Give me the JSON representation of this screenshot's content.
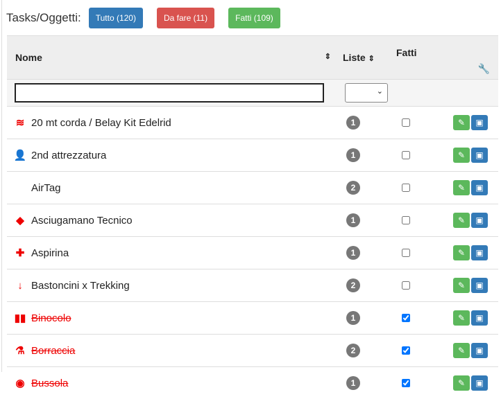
{
  "header": {
    "title": "Tasks/Oggetti:",
    "buttons": [
      {
        "label": "Tutto (120)",
        "color": "#337ab7"
      },
      {
        "label": "Da fare (11)",
        "color": "#d9534f"
      },
      {
        "label": "Fatti (109)",
        "color": "#5cb85c"
      }
    ]
  },
  "table": {
    "columns": {
      "nome": "Nome",
      "liste": "Liste",
      "fatti": "Fatti"
    },
    "filters": {
      "nome": "",
      "liste": ""
    },
    "rows": [
      {
        "icon": "squarespace-icon",
        "glyph": "≋",
        "name": "20 mt corda / Belay Kit Edelrid",
        "liste": "1",
        "done": false
      },
      {
        "icon": "user-check-icon",
        "glyph": "👤",
        "name": "2nd attrezzatura",
        "liste": "1",
        "done": false
      },
      {
        "icon": "apple-icon",
        "glyph": "",
        "name": "AirTag",
        "liste": "2",
        "done": false
      },
      {
        "icon": "bacon-icon",
        "glyph": "◆",
        "name": "Asciugamano Tecnico",
        "liste": "1",
        "done": false
      },
      {
        "icon": "medkit-icon",
        "glyph": "✚",
        "name": "Aspirina",
        "liste": "1",
        "done": false
      },
      {
        "icon": "arrow-down-icon",
        "glyph": "↓",
        "name": "Bastoncini x Trekking",
        "liste": "2",
        "done": false
      },
      {
        "icon": "binoculars-icon",
        "glyph": "▮▮",
        "name": "Binocolo",
        "liste": "1",
        "done": true
      },
      {
        "icon": "flask-icon",
        "glyph": "⚗",
        "name": "Borraccia",
        "liste": "2",
        "done": true
      },
      {
        "icon": "compass-icon",
        "glyph": "◉",
        "name": "Bussola",
        "liste": "1",
        "done": true
      }
    ]
  }
}
